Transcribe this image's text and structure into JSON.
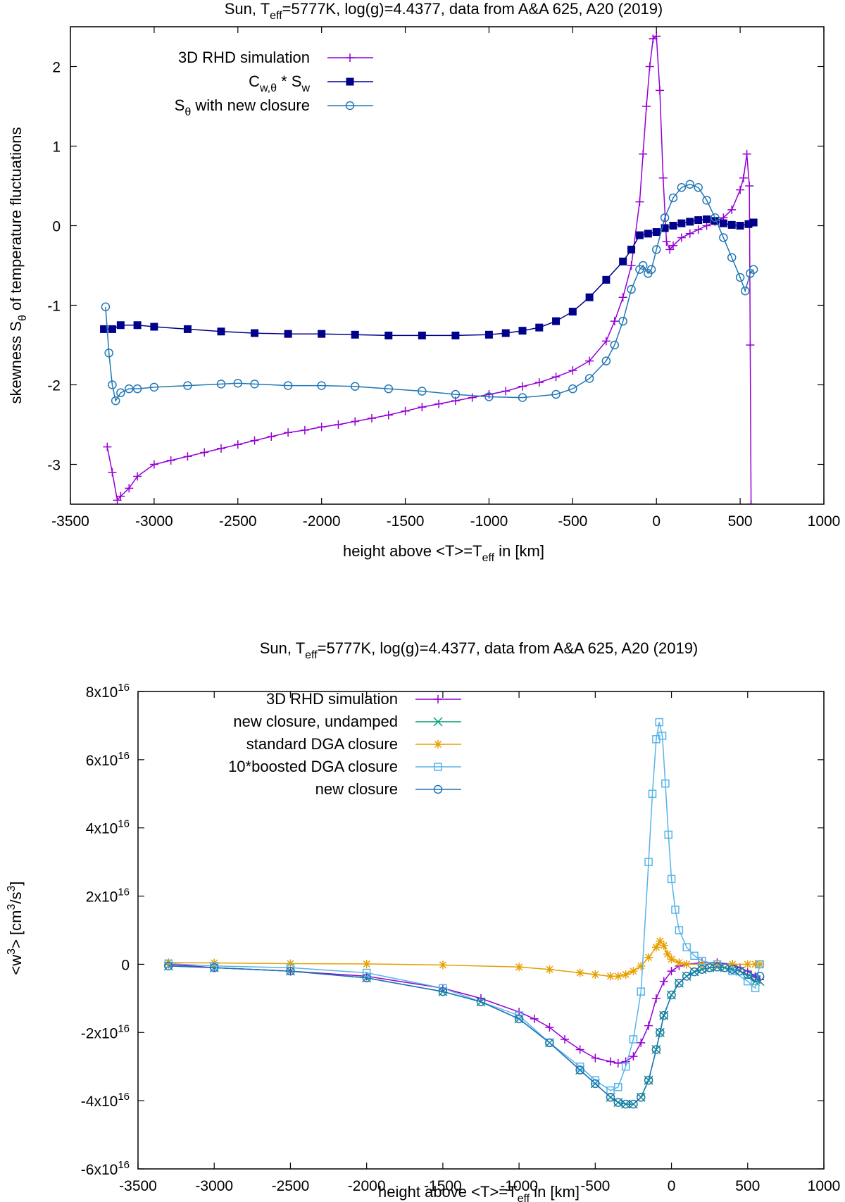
{
  "chart_data": [
    {
      "type": "line",
      "title": "Sun, T_eff=5777K, log(g)=4.4377, data from A&A 625, A20 (2019)",
      "title_parts": [
        "Sun, T",
        "eff",
        "=5777K, log(g)=4.4377, data from A&A 625, A20 (2019)"
      ],
      "xlabel": "height above <T>=T_eff in [km]",
      "xlabel_parts": [
        "height above <T>=T",
        "eff",
        " in [km]"
      ],
      "ylabel": "skewness S_θ of temperature fluctuations",
      "ylabel_parts": [
        "skewness S",
        "θ",
        " of temperature fluctuations"
      ],
      "xlim": [
        -3500,
        1000
      ],
      "ylim": [
        -3.5,
        2.5
      ],
      "xticks": [
        -3500,
        -3000,
        -2500,
        -2000,
        -1500,
        -1000,
        -500,
        0,
        500,
        1000
      ],
      "xtick_labels": [
        "-3500",
        "-3000",
        "-2500",
        "-2000",
        "-1500",
        "-1000",
        "-500",
        "0",
        "500",
        "1000"
      ],
      "yticks": [
        -3,
        -2,
        -1,
        0,
        1,
        2
      ],
      "ytick_labels": [
        "-3",
        "-2",
        "-1",
        "0",
        "1",
        "2"
      ],
      "legend_position": "top-left",
      "series": [
        {
          "name": "3D RHD simulation",
          "legend_parts": [
            "3D RHD simulation",
            "",
            ""
          ],
          "color": "#9400d3",
          "marker": "plus",
          "x": [
            -3280,
            -3250,
            -3220,
            -3200,
            -3150,
            -3100,
            -3000,
            -2900,
            -2800,
            -2700,
            -2600,
            -2500,
            -2400,
            -2300,
            -2200,
            -2100,
            -2000,
            -1900,
            -1800,
            -1700,
            -1600,
            -1500,
            -1400,
            -1300,
            -1200,
            -1100,
            -1000,
            -900,
            -800,
            -700,
            -600,
            -500,
            -400,
            -300,
            -250,
            -200,
            -150,
            -100,
            -80,
            -60,
            -40,
            -20,
            0,
            20,
            40,
            60,
            80,
            100,
            150,
            200,
            250,
            300,
            350,
            400,
            450,
            500,
            520,
            540,
            555,
            560,
            565
          ],
          "y": [
            -2.78,
            -3.1,
            -3.45,
            -3.4,
            -3.3,
            -3.15,
            -3.0,
            -2.95,
            -2.9,
            -2.85,
            -2.8,
            -2.75,
            -2.7,
            -2.65,
            -2.6,
            -2.57,
            -2.53,
            -2.5,
            -2.46,
            -2.42,
            -2.38,
            -2.33,
            -2.28,
            -2.24,
            -2.2,
            -2.16,
            -2.12,
            -2.08,
            -2.02,
            -1.97,
            -1.9,
            -1.82,
            -1.7,
            -1.45,
            -1.2,
            -0.9,
            -0.5,
            0.3,
            0.9,
            1.5,
            2.0,
            2.35,
            2.38,
            1.7,
            0.6,
            -0.2,
            -0.3,
            -0.25,
            -0.15,
            -0.1,
            -0.05,
            0.0,
            0.05,
            0.1,
            0.2,
            0.45,
            0.6,
            0.9,
            0.5,
            -1.5,
            -3.5
          ]
        },
        {
          "name": "C_w,θ * S_w",
          "legend_parts": [
            "C",
            "w,θ",
            " * S",
            "w"
          ],
          "color": "#00008b",
          "marker": "filled-square",
          "x": [
            -3300,
            -3250,
            -3200,
            -3100,
            -3000,
            -2800,
            -2600,
            -2400,
            -2200,
            -2000,
            -1800,
            -1600,
            -1400,
            -1200,
            -1000,
            -900,
            -800,
            -700,
            -600,
            -500,
            -400,
            -300,
            -200,
            -150,
            -100,
            -50,
            0,
            50,
            100,
            150,
            200,
            250,
            300,
            350,
            400,
            450,
            500,
            550,
            580
          ],
          "y": [
            -1.3,
            -1.3,
            -1.25,
            -1.25,
            -1.27,
            -1.3,
            -1.33,
            -1.35,
            -1.36,
            -1.36,
            -1.37,
            -1.38,
            -1.38,
            -1.38,
            -1.37,
            -1.35,
            -1.32,
            -1.28,
            -1.2,
            -1.08,
            -0.9,
            -0.68,
            -0.45,
            -0.3,
            -0.12,
            -0.1,
            -0.08,
            -0.03,
            0.0,
            0.03,
            0.05,
            0.07,
            0.08,
            0.06,
            0.03,
            0.01,
            0.0,
            0.02,
            0.04
          ]
        },
        {
          "name": "S_θ with new closure",
          "legend_parts": [
            "S",
            "θ",
            " with new closure",
            ""
          ],
          "color": "#2277b4",
          "marker": "open-circle",
          "x": [
            -3290,
            -3270,
            -3250,
            -3230,
            -3200,
            -3150,
            -3100,
            -3000,
            -2800,
            -2600,
            -2500,
            -2400,
            -2200,
            -2000,
            -1800,
            -1600,
            -1400,
            -1200,
            -1000,
            -800,
            -600,
            -500,
            -400,
            -300,
            -250,
            -200,
            -150,
            -100,
            -80,
            -50,
            -30,
            0,
            50,
            100,
            150,
            200,
            250,
            300,
            350,
            400,
            450,
            500,
            530,
            560,
            580
          ],
          "y": [
            -1.02,
            -1.6,
            -2.0,
            -2.2,
            -2.1,
            -2.05,
            -2.05,
            -2.03,
            -2.01,
            -1.99,
            -1.98,
            -1.99,
            -2.01,
            -2.01,
            -2.02,
            -2.05,
            -2.08,
            -2.12,
            -2.15,
            -2.16,
            -2.12,
            -2.05,
            -1.92,
            -1.7,
            -1.5,
            -1.2,
            -0.8,
            -0.55,
            -0.5,
            -0.6,
            -0.55,
            -0.3,
            0.1,
            0.35,
            0.48,
            0.52,
            0.48,
            0.32,
            0.1,
            -0.15,
            -0.4,
            -0.65,
            -0.82,
            -0.6,
            -0.55
          ]
        }
      ]
    },
    {
      "type": "line",
      "title": "Sun, T_eff=5777K, log(g)=4.4377, data from A&A 625, A20 (2019)",
      "title_parts": [
        "Sun, T",
        "eff",
        "=5777K, log(g)=4.4377, data from A&A 625, A20 (2019)"
      ],
      "xlabel": "height above <T>=T_eff in [km]",
      "xlabel_parts": [
        "height above <T>=T",
        "eff",
        " in [km]"
      ],
      "ylabel": "<w^3> [cm^3/s^3]",
      "ylabel_parts": [
        "<w",
        "3",
        "> [cm",
        "3",
        "/s",
        "3",
        "]"
      ],
      "xlim": [
        -3500,
        1000
      ],
      "ylim": [
        -6e+16,
        8e+16
      ],
      "xticks": [
        -3500,
        -3000,
        -2500,
        -2000,
        -1500,
        -1000,
        -500,
        0,
        500,
        1000
      ],
      "xtick_labels": [
        "-3500",
        "-3000",
        "-2500",
        "-2000",
        "-1500",
        "-1000",
        "-500",
        "0",
        "500",
        "1000"
      ],
      "yticks": [
        -6e+16,
        -4e+16,
        -2e+16,
        0,
        2e+16,
        4e+16,
        6e+16,
        8e+16
      ],
      "ytick_labels": [
        [
          "-6x10",
          "16"
        ],
        [
          "-4x10",
          "16"
        ],
        [
          "-2x10",
          "16"
        ],
        [
          "0",
          ""
        ],
        [
          "2x10",
          "16"
        ],
        [
          "4x10",
          "16"
        ],
        [
          "6x10",
          "16"
        ],
        [
          "8x10",
          "16"
        ]
      ],
      "legend_position": "top-left",
      "series": [
        {
          "name": "3D RHD simulation",
          "color": "#9400d3",
          "marker": "plus",
          "x": [
            -3300,
            -3000,
            -2500,
            -2000,
            -1500,
            -1250,
            -1000,
            -900,
            -800,
            -700,
            -600,
            -500,
            -400,
            -350,
            -300,
            -250,
            -200,
            -150,
            -100,
            -50,
            0,
            50,
            100,
            200,
            300,
            400,
            450,
            500,
            550,
            580
          ],
          "y": [
            0,
            -1000000000000000.0,
            -2000000000000000.0,
            -3500000000000000.0,
            -7000000000000000.0,
            -1e+16,
            -1.4e+16,
            -1.6e+16,
            -1.85e+16,
            -2.2e+16,
            -2.5e+16,
            -2.75e+16,
            -2.85e+16,
            -2.9e+16,
            -2.85e+16,
            -2.7e+16,
            -2.3e+16,
            -1.8e+16,
            -1e+16,
            -5000000000000000.0,
            -2000000000000000.0,
            -500000000000000.0,
            0,
            500000000000000.0,
            500000000000000.0,
            0,
            -1000000000000000.0,
            -2000000000000000.0,
            -3500000000000000.0,
            -4500000000000000.0
          ]
        },
        {
          "name": "new closure, undamped",
          "color": "#009e73",
          "marker": "cross",
          "x": [
            -3300,
            -3000,
            -2500,
            -2000,
            -1500,
            -1250,
            -1000,
            -800,
            -600,
            -500,
            -400,
            -350,
            -300,
            -250,
            -200,
            -150,
            -100,
            -75,
            -50,
            0,
            50,
            100,
            150,
            200,
            250,
            300,
            350,
            400,
            450,
            500,
            550,
            580
          ],
          "y": [
            -500000000000000.0,
            -1000000000000000.0,
            -2000000000000000.0,
            -4000000000000000.0,
            -8000000000000000.0,
            -1.1e+16,
            -1.6e+16,
            -2.3e+16,
            -3.1e+16,
            -3.5e+16,
            -3.9e+16,
            -4.05e+16,
            -4.1e+16,
            -4.1e+16,
            -3.9e+16,
            -3.4e+16,
            -2.5e+16,
            -2e+16,
            -1.5e+16,
            -9000000000000000.0,
            -5500000000000000.0,
            -3500000000000000.0,
            -2200000000000000.0,
            -1500000000000000.0,
            -1000000000000000.0,
            -800000000000000.0,
            -1000000000000000.0,
            -1500000000000000.0,
            -2000000000000000.0,
            -3500000000000000.0,
            -5000000000000000.0,
            -5000000000000000.0
          ]
        },
        {
          "name": "standard DGA closure",
          "color": "#e69f00",
          "marker": "star",
          "x": [
            -3300,
            -3000,
            -2500,
            -2000,
            -1500,
            -1000,
            -800,
            -600,
            -500,
            -400,
            -350,
            -300,
            -250,
            -200,
            -150,
            -100,
            -75,
            -50,
            -25,
            0,
            50,
            100,
            200,
            300,
            400,
            500,
            550,
            580
          ],
          "y": [
            500000000000000.0,
            400000000000000.0,
            200000000000000.0,
            100000000000000.0,
            -200000000000000.0,
            -800000000000000.0,
            -1500000000000000.0,
            -2500000000000000.0,
            -3000000000000000.0,
            -3500000000000000.0,
            -3500000000000000.0,
            -3000000000000000.0,
            -2000000000000000.0,
            -500000000000000.0,
            2000000000000000.0,
            5000000000000000.0,
            6800000000000000.0,
            5500000000000000.0,
            3000000000000000.0,
            1500000000000000.0,
            500000000000000.0,
            0,
            0,
            0,
            0,
            0,
            0,
            0
          ]
        },
        {
          "name": "10*boosted DGA closure",
          "color": "#56b4e9",
          "marker": "open-square",
          "x": [
            -3300,
            -3000,
            -2500,
            -2000,
            -1500,
            -1000,
            -800,
            -600,
            -500,
            -400,
            -350,
            -300,
            -250,
            -200,
            -150,
            -125,
            -100,
            -80,
            -60,
            -40,
            -20,
            0,
            25,
            50,
            100,
            150,
            200,
            300,
            400,
            500,
            550,
            580
          ],
          "y": [
            200000000000000.0,
            -500000000000000.0,
            -1000000000000000.0,
            -2500000000000000.0,
            -7000000000000000.0,
            -1.5e+16,
            -2.3e+16,
            -3e+16,
            -3.4e+16,
            -3.7e+16,
            -3.6e+16,
            -3e+16,
            -2.2e+16,
            -8000000000000000.0,
            3e+16,
            5e+16,
            6.6e+16,
            7.1e+16,
            6.7e+16,
            5.3e+16,
            3.8e+16,
            2.5e+16,
            1.6e+16,
            1e+16,
            5000000000000000.0,
            2500000000000000.0,
            1000000000000000.0,
            0,
            -2000000000000000.0,
            -5000000000000000.0,
            -7000000000000000.0,
            0
          ]
        },
        {
          "name": "new closure",
          "color": "#2171b5",
          "marker": "open-circle",
          "x": [
            -3300,
            -3000,
            -2500,
            -2000,
            -1500,
            -1250,
            -1000,
            -800,
            -600,
            -500,
            -400,
            -350,
            -300,
            -250,
            -200,
            -150,
            -100,
            -75,
            -50,
            0,
            50,
            100,
            150,
            200,
            250,
            300,
            350,
            400,
            450,
            500,
            550,
            580
          ],
          "y": [
            -500000000000000.0,
            -1000000000000000.0,
            -2000000000000000.0,
            -4000000000000000.0,
            -8000000000000000.0,
            -1.1e+16,
            -1.6e+16,
            -2.3e+16,
            -3.1e+16,
            -3.5e+16,
            -3.9e+16,
            -4.05e+16,
            -4.1e+16,
            -4.1e+16,
            -3.9e+16,
            -3.4e+16,
            -2.5e+16,
            -2e+16,
            -1.5e+16,
            -9000000000000000.0,
            -5500000000000000.0,
            -3500000000000000.0,
            -2200000000000000.0,
            -1500000000000000.0,
            -1000000000000000.0,
            -800000000000000.0,
            -1000000000000000.0,
            -1500000000000000.0,
            -2000000000000000.0,
            -3000000000000000.0,
            -4000000000000000.0,
            -3500000000000000.0
          ]
        }
      ]
    }
  ]
}
